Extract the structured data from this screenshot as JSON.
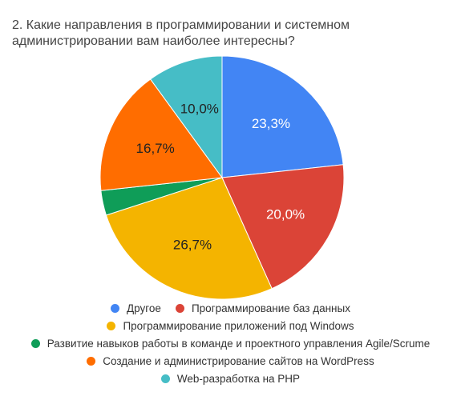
{
  "title": "2. Какие направления в программировании и системном администрировании вам наиболее интересны?",
  "chart_data": {
    "type": "pie",
    "slices": [
      {
        "name": "Другое",
        "value": 23.3,
        "label": "23,3%",
        "color": "#4285F4"
      },
      {
        "name": "Программирование баз данных",
        "value": 20.0,
        "label": "20,0%",
        "color": "#DB4437"
      },
      {
        "name": "Программирование приложений под Windows",
        "value": 26.7,
        "label": "26,7%",
        "color": "#F4B400"
      },
      {
        "name": "Развитие навыков работы в команде и проектного управления Agile/Scrume",
        "value": 3.3,
        "label": "",
        "color": "#0F9D58"
      },
      {
        "name": "Создание и администрирование сайтов на WordPress",
        "value": 16.7,
        "label": "16,7%",
        "color": "#FF6D00"
      },
      {
        "name": "Web-разработка на PHP",
        "value": 10.0,
        "label": "10,0%",
        "color": "#46BDC6"
      }
    ],
    "start_angle_deg": 0,
    "direction": "clockwise",
    "legend_position": "bottom"
  }
}
